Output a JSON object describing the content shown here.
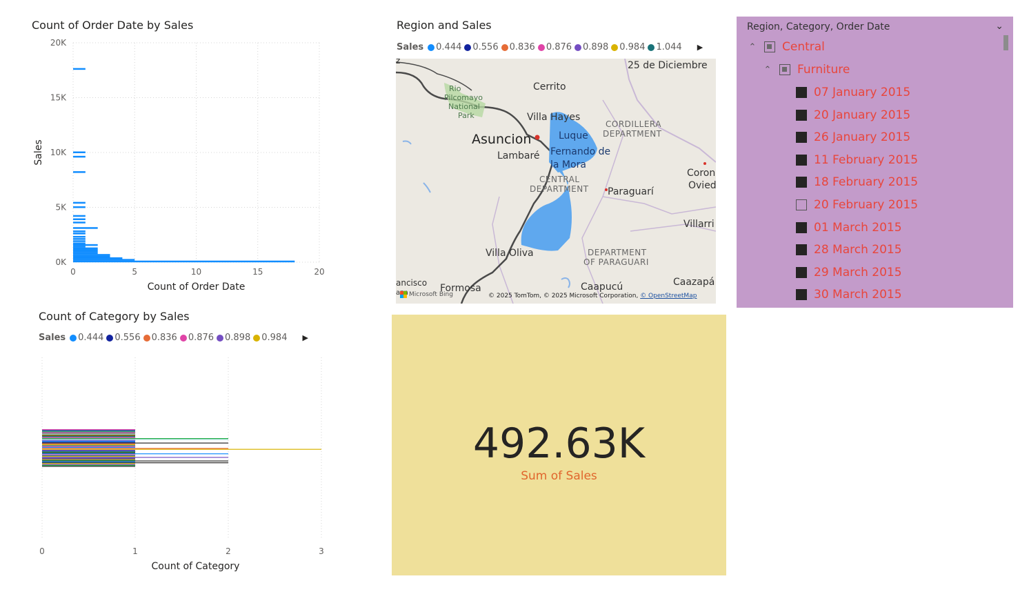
{
  "charts": [
    {
      "title": "Count of Order Date by Sales",
      "xlabel": "Count of Order Date",
      "ylabel": "Sales",
      "x_ticks": [
        "0",
        "5",
        "10",
        "15",
        "20"
      ],
      "y_ticks": [
        "0K",
        "5K",
        "10K",
        "15K",
        "20K"
      ]
    },
    {
      "title": "Count of Category by Sales",
      "xlabel": "Count of Category",
      "x_ticks": [
        "0",
        "1",
        "2",
        "3"
      ],
      "legend_title": "Sales",
      "legend": [
        {
          "label": "0.444",
          "color": "#118dff"
        },
        {
          "label": "0.556",
          "color": "#12239e"
        },
        {
          "label": "0.836",
          "color": "#e66c37"
        },
        {
          "label": "0.876",
          "color": "#e044a7"
        },
        {
          "label": "0.898",
          "color": "#744ec2"
        },
        {
          "label": "0.984",
          "color": "#d9b300"
        }
      ]
    }
  ],
  "chart_data": [
    {
      "type": "bar",
      "orientation": "horizontal",
      "xlim": [
        0,
        20
      ],
      "ylim": [
        0,
        20000
      ],
      "x_unit": "count",
      "y_unit": "sales",
      "color": "#118dff",
      "bars": [
        {
          "sales": 17600,
          "count": 1
        },
        {
          "sales": 10000,
          "count": 1
        },
        {
          "sales": 9600,
          "count": 1
        },
        {
          "sales": 8200,
          "count": 1
        },
        {
          "sales": 5400,
          "count": 1
        },
        {
          "sales": 5000,
          "count": 1
        },
        {
          "sales": 4200,
          "count": 1
        },
        {
          "sales": 3900,
          "count": 1
        },
        {
          "sales": 3600,
          "count": 1
        },
        {
          "sales": 3100,
          "count": 2
        },
        {
          "sales": 2800,
          "count": 1
        },
        {
          "sales": 2600,
          "count": 1
        },
        {
          "sales": 2300,
          "count": 1
        },
        {
          "sales": 2100,
          "count": 1
        },
        {
          "sales": 1900,
          "count": 1
        },
        {
          "sales": 1700,
          "count": 1
        },
        {
          "sales": 1550,
          "count": 2
        },
        {
          "sales": 1400,
          "count": 1
        },
        {
          "sales": 1250,
          "count": 2
        },
        {
          "sales": 1100,
          "count": 2
        },
        {
          "sales": 950,
          "count": 2
        },
        {
          "sales": 800,
          "count": 2
        },
        {
          "sales": 650,
          "count": 3
        },
        {
          "sales": 500,
          "count": 3
        },
        {
          "sales": 350,
          "count": 4
        },
        {
          "sales": 200,
          "count": 5
        },
        {
          "sales": 50,
          "count": 18
        }
      ]
    },
    {
      "type": "bar",
      "orientation": "horizontal",
      "xlim": [
        0,
        3
      ],
      "x_unit": "count",
      "lines": [
        {
          "count": 1,
          "color": "#e044a7"
        },
        {
          "count": 1,
          "color": "#12239e"
        },
        {
          "count": 1,
          "color": "#1aab40"
        },
        {
          "count": 1,
          "color": "#744ec2"
        },
        {
          "count": 1,
          "color": "#e66c37"
        },
        {
          "count": 1,
          "color": "#118dff"
        },
        {
          "count": 1,
          "color": "#d9b300"
        },
        {
          "count": 1,
          "color": "#252423"
        },
        {
          "count": 1,
          "color": "#197278"
        },
        {
          "count": 1,
          "color": "#e044a7"
        },
        {
          "count": 2,
          "color": "#1aab40"
        },
        {
          "count": 2,
          "color": "#9edbd2"
        },
        {
          "count": 1,
          "color": "#744ec2"
        },
        {
          "count": 1,
          "color": "#118dff"
        },
        {
          "count": 1,
          "color": "#12239e"
        },
        {
          "count": 2,
          "color": "#252423"
        },
        {
          "count": 1,
          "color": "#e66c37"
        },
        {
          "count": 1,
          "color": "#d9b300"
        },
        {
          "count": 1,
          "color": "#197278"
        },
        {
          "count": 1,
          "color": "#e044a7"
        },
        {
          "count": 1,
          "color": "#118dff"
        },
        {
          "count": 2,
          "color": "#e66c37"
        },
        {
          "count": 3,
          "color": "#d9b300"
        },
        {
          "count": 1,
          "color": "#744ec2"
        },
        {
          "count": 1,
          "color": "#12239e"
        },
        {
          "count": 1,
          "color": "#1aab40"
        },
        {
          "count": 1,
          "color": "#252423"
        },
        {
          "count": 2,
          "color": "#118dff"
        },
        {
          "count": 1,
          "color": "#e044a7"
        },
        {
          "count": 1,
          "color": "#197278"
        },
        {
          "count": 1,
          "color": "#d9b300"
        },
        {
          "count": 2,
          "color": "#744ec2"
        },
        {
          "count": 1,
          "color": "#12239e"
        },
        {
          "count": 1,
          "color": "#e66c37"
        },
        {
          "count": 1,
          "color": "#1aab40"
        },
        {
          "count": 2,
          "color": "#252423"
        },
        {
          "count": 1,
          "color": "#118dff"
        },
        {
          "count": 2,
          "color": "#252423"
        },
        {
          "count": 1,
          "color": "#d9b300"
        },
        {
          "count": 1,
          "color": "#744ec2"
        },
        {
          "count": 1,
          "color": "#1aab40"
        },
        {
          "count": 1,
          "color": "#252423"
        }
      ]
    }
  ],
  "map": {
    "title": "Region and Sales",
    "legend_title": "Sales",
    "legend": [
      {
        "label": "0.444",
        "color": "#118dff"
      },
      {
        "label": "0.556",
        "color": "#12239e"
      },
      {
        "label": "0.836",
        "color": "#e66c37"
      },
      {
        "label": "0.876",
        "color": "#e044a7"
      },
      {
        "label": "0.898",
        "color": "#744ec2"
      },
      {
        "label": "0.984",
        "color": "#d9b300"
      },
      {
        "label": "1.044",
        "color": "#197278"
      }
    ],
    "labels": {
      "asuncion": "Asuncion",
      "lambare": "Lambaré",
      "cerrito": "Cerrito",
      "villa_hayes": "Villa Hayes",
      "luque": "Luque",
      "fernando_1": "Fernando de",
      "fernando_2": "la Mora",
      "central_1": "CENTRAL",
      "central_2": "DEPARTMENT",
      "cordillera_1": "CORDILLERA",
      "cordillera_2": "DEPARTMENT",
      "paraguari": "Paraguarí",
      "paraguari_dept_1": "DEPARTMENT",
      "paraguari_dept_2": "OF PARAGUARI",
      "villa_oliva": "Villa Oliva",
      "formosa": "Formosa",
      "caapucu": "Caapucú",
      "caazapa": "Caazapá",
      "villarrica": "Villarri",
      "coronel_1": "Coron",
      "coronel_2": "Ovied",
      "diciembre": "25 de Diciembre",
      "park_1": "Rio",
      "park_2": "Pilcomayo",
      "park_3": "National",
      "park_4": "Park",
      "francisco": "ancisco",
      "edge_z": "z",
      "edge_azn": "azn"
    },
    "attribution": "© 2025 TomTom, © 2025 Microsoft Corporation,",
    "attribution_link": "© OpenStreetMap",
    "bing": "Microsoft Bing"
  },
  "slicer": {
    "header": "Region, Category, Order Date",
    "region": "Central",
    "category": "Furniture",
    "dates": [
      {
        "label": "07 January 2015",
        "checked": true
      },
      {
        "label": "20 January 2015",
        "checked": true
      },
      {
        "label": "26 January 2015",
        "checked": true
      },
      {
        "label": "11 February 2015",
        "checked": true
      },
      {
        "label": "18 February 2015",
        "checked": true
      },
      {
        "label": "20 February 2015",
        "checked": false
      },
      {
        "label": "01 March 2015",
        "checked": true
      },
      {
        "label": "28 March 2015",
        "checked": true
      },
      {
        "label": "29 March 2015",
        "checked": true
      },
      {
        "label": "30 March 2015",
        "checked": true
      }
    ]
  },
  "card": {
    "value": "492.63K",
    "label": "Sum of Sales"
  }
}
